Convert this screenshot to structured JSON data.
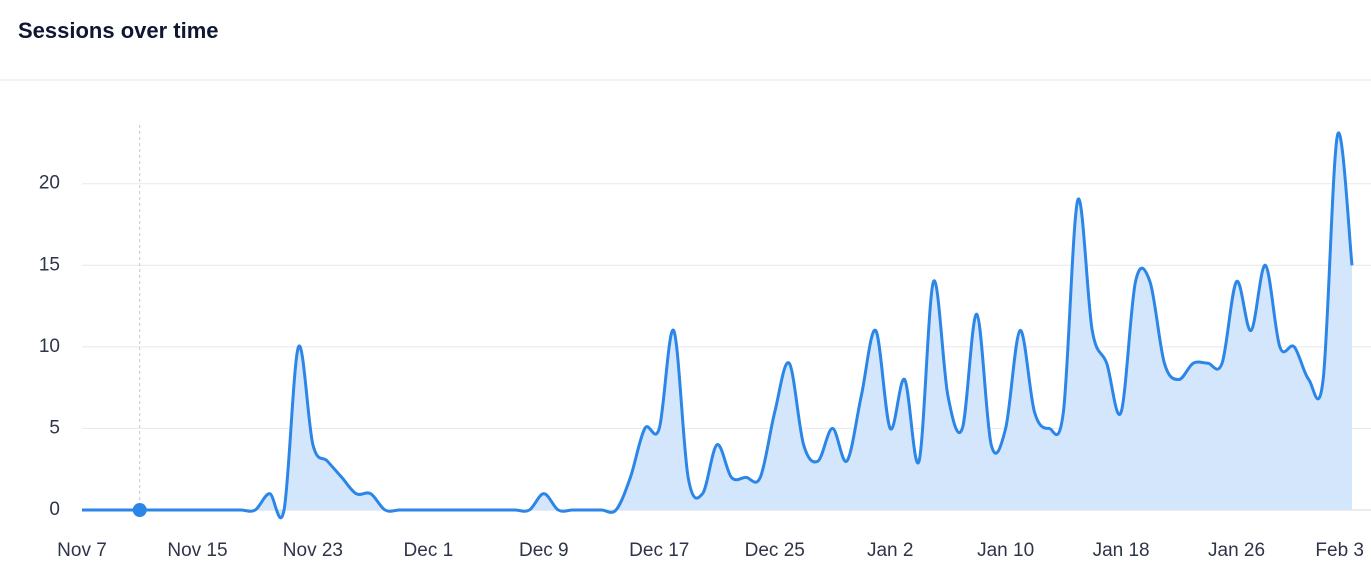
{
  "chart_data": {
    "type": "area",
    "title": "Sessions over time",
    "categories": [
      "Nov 7",
      null,
      null,
      null,
      null,
      null,
      null,
      null,
      "Nov 15",
      null,
      null,
      null,
      null,
      null,
      null,
      null,
      "Nov 23",
      null,
      null,
      null,
      null,
      null,
      null,
      null,
      "Dec 1",
      null,
      null,
      null,
      null,
      null,
      null,
      null,
      "Dec 9",
      null,
      null,
      null,
      null,
      null,
      null,
      null,
      "Dec 17",
      null,
      null,
      null,
      null,
      null,
      null,
      null,
      "Dec 25",
      null,
      null,
      null,
      null,
      null,
      null,
      null,
      "Jan 2",
      null,
      null,
      null,
      null,
      null,
      null,
      null,
      "Jan 10",
      null,
      null,
      null,
      null,
      null,
      null,
      null,
      "Jan 18",
      null,
      null,
      null,
      null,
      null,
      null,
      null,
      "Jan 26",
      null,
      null,
      null,
      null,
      null,
      null,
      null,
      "Feb 3"
    ],
    "values": [
      0,
      0,
      0,
      0,
      0,
      0,
      0,
      0,
      0,
      0,
      0,
      0,
      0,
      1,
      0,
      10,
      4,
      3,
      2,
      1,
      1,
      0,
      0,
      0,
      0,
      0,
      0,
      0,
      0,
      0,
      0,
      0,
      1,
      0,
      0,
      0,
      0,
      0,
      2,
      5,
      5,
      11,
      2,
      1,
      4,
      2,
      2,
      2,
      6,
      9,
      4,
      3,
      5,
      3,
      7,
      11,
      5,
      8,
      3,
      14,
      7,
      5,
      12,
      4,
      5,
      11,
      6,
      5,
      6,
      19,
      11,
      9,
      6,
      14,
      14,
      9,
      8,
      9,
      9,
      9,
      14,
      11,
      15,
      10,
      10,
      8,
      8,
      23,
      15
    ],
    "color": "#2b86e8",
    "fill": "#d4e6fb",
    "ylim": [
      0,
      23.6
    ],
    "yticks": [
      0,
      5,
      10,
      15,
      20
    ],
    "grid": true
  }
}
